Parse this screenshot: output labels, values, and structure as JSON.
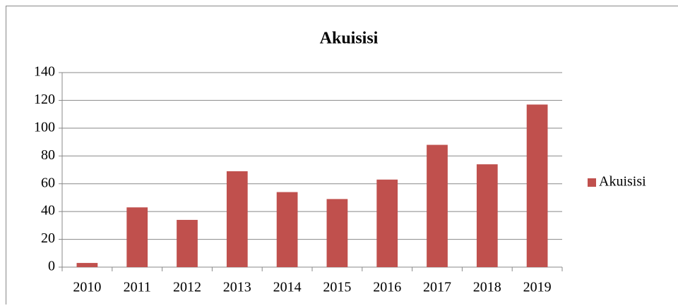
{
  "chart_data": {
    "type": "bar",
    "title": "Akuisisi",
    "categories": [
      "2010",
      "2011",
      "2012",
      "2013",
      "2014",
      "2015",
      "2016",
      "2017",
      "2018",
      "2019"
    ],
    "series": [
      {
        "name": "Akuisisi",
        "color": "#c0504d",
        "values": [
          3,
          43,
          34,
          69,
          54,
          49,
          63,
          88,
          74,
          117
        ]
      }
    ],
    "ylim": [
      0,
      140
    ],
    "yticks": [
      0,
      20,
      40,
      60,
      80,
      100,
      120,
      140
    ],
    "grid": true,
    "legend": "right"
  }
}
